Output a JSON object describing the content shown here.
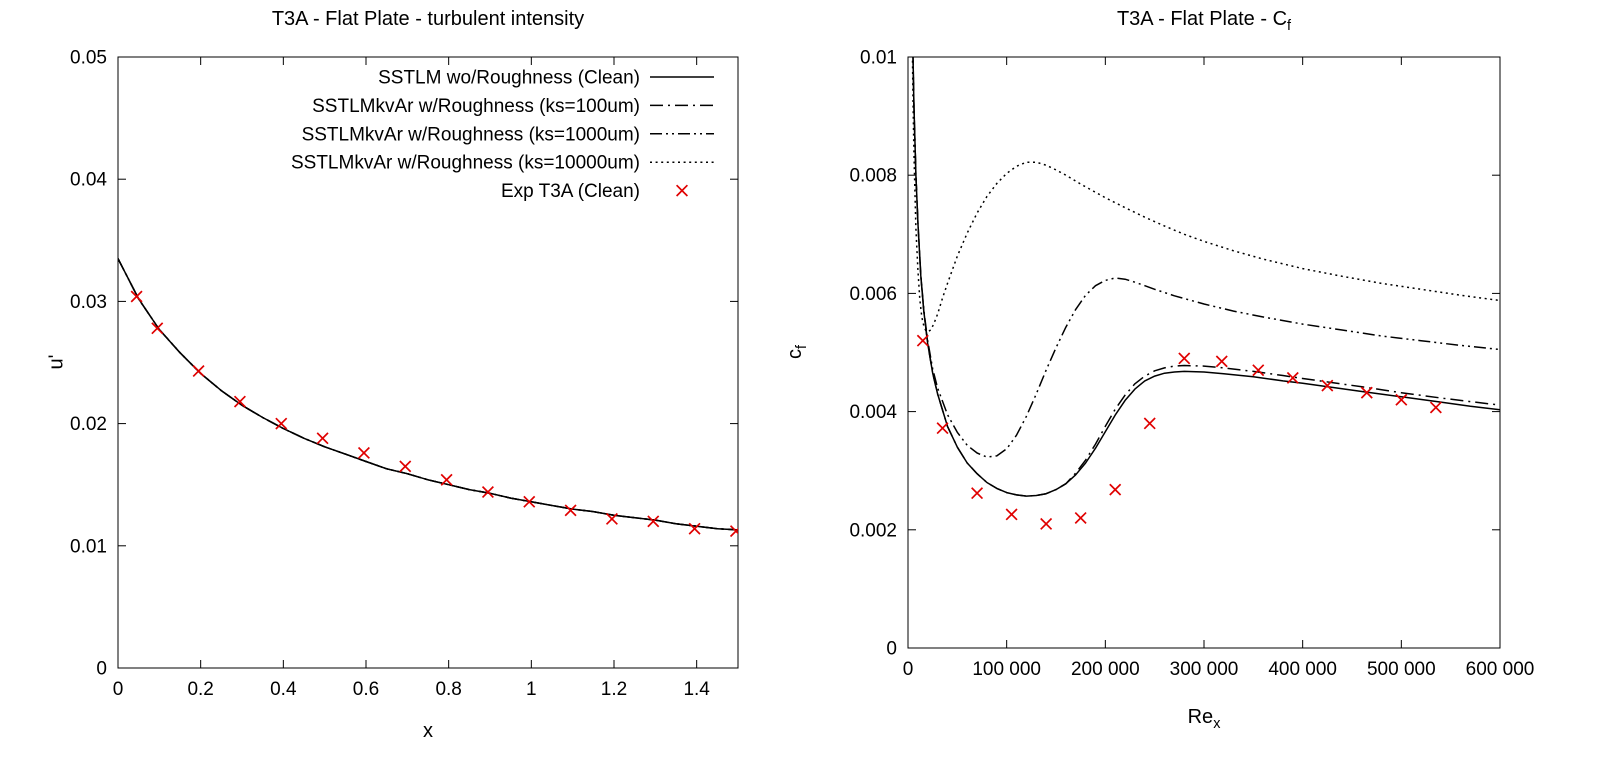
{
  "page": {
    "background": "#ffffff"
  },
  "styles": {
    "axis_color": "#000000",
    "model_line_color": "#000000",
    "experiment_color": "#e00000"
  },
  "chart_data": [
    {
      "id": "turbulent-intensity",
      "type": "line",
      "title": "T3A - Flat Plate - turbulent intensity",
      "xlabel": "x",
      "ylabel": "u'",
      "xlim": [
        0,
        1.5
      ],
      "ylim": [
        0,
        0.05
      ],
      "grid": false,
      "x_ticks": {
        "values": [
          0,
          0.2,
          0.4,
          0.6,
          0.8,
          1,
          1.2,
          1.4
        ],
        "labels": [
          "0",
          "0.2",
          "0.4",
          "0.6",
          "0.8",
          "1",
          "1.2",
          "1.4"
        ]
      },
      "y_ticks": {
        "values": [
          0,
          0.01,
          0.02,
          0.03,
          0.04,
          0.05
        ],
        "labels": [
          "0",
          "0.01",
          "0.02",
          "0.03",
          "0.04",
          "0.05"
        ]
      },
      "legend": {
        "visible": true,
        "position": "top-center-inside"
      },
      "series": [
        {
          "name": "SSTLM wo/Roughness (Clean)",
          "style": "solid",
          "color": "#000000",
          "x": [
            0,
            0.05,
            0.1,
            0.15,
            0.2,
            0.25,
            0.3,
            0.35,
            0.4,
            0.45,
            0.5,
            0.55,
            0.6,
            0.65,
            0.7,
            0.75,
            0.8,
            0.85,
            0.9,
            0.95,
            1,
            1.05,
            1.1,
            1.15,
            1.2,
            1.25,
            1.3,
            1.35,
            1.4,
            1.45,
            1.5
          ],
          "y": [
            0.0335,
            0.0302,
            0.0277,
            0.0258,
            0.0241,
            0.0227,
            0.0215,
            0.0205,
            0.0196,
            0.0188,
            0.0181,
            0.0175,
            0.0169,
            0.0163,
            0.0159,
            0.0154,
            0.015,
            0.0146,
            0.0143,
            0.0139,
            0.0136,
            0.0133,
            0.013,
            0.0128,
            0.0125,
            0.0123,
            0.0121,
            0.0118,
            0.0116,
            0.0114,
            0.0113
          ]
        },
        {
          "name": "SSTLMkvAr w/Roughness (ks=100um)",
          "style": "dash-dot",
          "color": "#000000",
          "x": [
            0,
            0.05,
            0.1,
            0.15,
            0.2,
            0.25,
            0.3,
            0.35,
            0.4,
            0.45,
            0.5,
            0.55,
            0.6,
            0.65,
            0.7,
            0.75,
            0.8,
            0.85,
            0.9,
            0.95,
            1,
            1.05,
            1.1,
            1.15,
            1.2,
            1.25,
            1.3,
            1.35,
            1.4,
            1.45,
            1.5
          ],
          "y": [
            0.0335,
            0.0302,
            0.0277,
            0.0258,
            0.0241,
            0.0227,
            0.0215,
            0.0205,
            0.0196,
            0.0188,
            0.0181,
            0.0175,
            0.0169,
            0.0163,
            0.0159,
            0.0154,
            0.015,
            0.0146,
            0.0143,
            0.0139,
            0.0136,
            0.0133,
            0.013,
            0.0128,
            0.0125,
            0.0123,
            0.0121,
            0.0118,
            0.0116,
            0.0114,
            0.0113
          ]
        },
        {
          "name": "SSTLMkvAr w/Roughness (ks=1000um)",
          "style": "dash-dot-dot",
          "color": "#000000",
          "x": [
            0,
            0.05,
            0.1,
            0.15,
            0.2,
            0.25,
            0.3,
            0.35,
            0.4,
            0.45,
            0.5,
            0.55,
            0.6,
            0.65,
            0.7,
            0.75,
            0.8,
            0.85,
            0.9,
            0.95,
            1,
            1.05,
            1.1,
            1.15,
            1.2,
            1.25,
            1.3,
            1.35,
            1.4,
            1.45,
            1.5
          ],
          "y": [
            0.0335,
            0.0302,
            0.0277,
            0.0258,
            0.0241,
            0.0227,
            0.0215,
            0.0205,
            0.0196,
            0.0188,
            0.0181,
            0.0175,
            0.0169,
            0.0163,
            0.0159,
            0.0154,
            0.015,
            0.0146,
            0.0143,
            0.0139,
            0.0136,
            0.0133,
            0.013,
            0.0128,
            0.0125,
            0.0123,
            0.0121,
            0.0118,
            0.0116,
            0.0114,
            0.0113
          ]
        },
        {
          "name": "SSTLMkvAr w/Roughness (ks=10000um)",
          "style": "dotted",
          "color": "#000000",
          "x": [
            0,
            0.05,
            0.1,
            0.15,
            0.2,
            0.25,
            0.3,
            0.35,
            0.4,
            0.45,
            0.5,
            0.55,
            0.6,
            0.65,
            0.7,
            0.75,
            0.8,
            0.85,
            0.9,
            0.95,
            1,
            1.05,
            1.1,
            1.15,
            1.2,
            1.25,
            1.3,
            1.35,
            1.4,
            1.45,
            1.5
          ],
          "y": [
            0.0335,
            0.0302,
            0.0277,
            0.0258,
            0.0241,
            0.0227,
            0.0215,
            0.0205,
            0.0196,
            0.0188,
            0.0181,
            0.0175,
            0.0169,
            0.0163,
            0.0159,
            0.0154,
            0.015,
            0.0146,
            0.0143,
            0.0139,
            0.0136,
            0.0133,
            0.013,
            0.0128,
            0.0125,
            0.0123,
            0.0121,
            0.0118,
            0.0116,
            0.0114,
            0.0113
          ]
        },
        {
          "name": "Exp T3A (Clean)",
          "style": "scatter-x",
          "color": "#e00000",
          "x": [
            0.045,
            0.095,
            0.195,
            0.295,
            0.395,
            0.495,
            0.595,
            0.695,
            0.795,
            0.895,
            0.995,
            1.095,
            1.195,
            1.295,
            1.395,
            1.495
          ],
          "y": [
            0.0304,
            0.0278,
            0.0243,
            0.0218,
            0.02,
            0.0188,
            0.0176,
            0.0165,
            0.0154,
            0.0144,
            0.0136,
            0.0129,
            0.0122,
            0.012,
            0.0114,
            0.0112
          ]
        }
      ]
    },
    {
      "id": "skin-friction",
      "type": "line",
      "title": "T3A - Flat Plate - Cf",
      "title_main": "T3A - Flat Plate - C",
      "title_sub": "f",
      "xlabel": "Re_x",
      "xlabel_main": "Re",
      "xlabel_sub": "x",
      "ylabel": "c_f",
      "ylabel_main": "c",
      "ylabel_sub": "f",
      "xlim": [
        0,
        600000
      ],
      "ylim": [
        0,
        0.01
      ],
      "grid": false,
      "x_ticks": {
        "values": [
          0,
          100000,
          200000,
          300000,
          400000,
          500000,
          600000
        ],
        "labels": [
          "0",
          "100 000",
          "200 000",
          "300 000",
          "400 000",
          "500 000",
          "600 000"
        ]
      },
      "y_ticks": {
        "values": [
          0,
          0.002,
          0.004,
          0.006,
          0.008,
          0.01
        ],
        "labels": [
          "0",
          "0.002",
          "0.004",
          "0.006",
          "0.008",
          "0.01"
        ]
      },
      "legend": {
        "visible": false
      },
      "series": [
        {
          "name": "SSTLM wo/Roughness (Clean)",
          "style": "solid",
          "color": "#000000",
          "x": [
            2000,
            3000,
            4000,
            5000,
            6000,
            8000,
            10000,
            13000,
            16000,
            20000,
            25000,
            30000,
            40000,
            50000,
            60000,
            70000,
            80000,
            90000,
            100000,
            110000,
            120000,
            130000,
            140000,
            150000,
            160000,
            170000,
            180000,
            190000,
            200000,
            210000,
            220000,
            230000,
            240000,
            250000,
            260000,
            270000,
            280000,
            300000,
            320000,
            350000,
            380000,
            400000,
            430000,
            460000,
            500000,
            540000,
            570000,
            600000
          ],
          "y": [
            0.016,
            0.0131,
            0.0113,
            0.0101,
            0.0092,
            0.008,
            0.0072,
            0.0063,
            0.0057,
            0.00515,
            0.00465,
            0.0043,
            0.00375,
            0.0034,
            0.00313,
            0.00295,
            0.0028,
            0.0027,
            0.00263,
            0.00259,
            0.00257,
            0.00258,
            0.00261,
            0.00268,
            0.00278,
            0.00293,
            0.00313,
            0.00338,
            0.00366,
            0.00394,
            0.00419,
            0.00438,
            0.00452,
            0.0046,
            0.00465,
            0.00467,
            0.00468,
            0.00467,
            0.00464,
            0.00459,
            0.00452,
            0.00448,
            0.00441,
            0.00434,
            0.00425,
            0.00416,
            0.00409,
            0.00403
          ]
        },
        {
          "name": "SSTLMkvAr w/Roughness (ks=100um)",
          "style": "dash-dot",
          "color": "#000000",
          "x": [
            2000,
            3000,
            4000,
            5000,
            6000,
            8000,
            10000,
            13000,
            16000,
            20000,
            25000,
            30000,
            40000,
            50000,
            60000,
            70000,
            80000,
            90000,
            100000,
            110000,
            120000,
            130000,
            140000,
            150000,
            160000,
            170000,
            180000,
            190000,
            200000,
            210000,
            220000,
            230000,
            240000,
            250000,
            260000,
            270000,
            280000,
            300000,
            320000,
            350000,
            380000,
            400000,
            430000,
            460000,
            500000,
            540000,
            570000,
            600000
          ],
          "y": [
            0.016,
            0.0131,
            0.0113,
            0.0101,
            0.0092,
            0.008,
            0.0072,
            0.0063,
            0.0057,
            0.00515,
            0.00465,
            0.0043,
            0.00375,
            0.0034,
            0.00313,
            0.00295,
            0.0028,
            0.0027,
            0.00263,
            0.00259,
            0.00257,
            0.00258,
            0.00261,
            0.00268,
            0.00278,
            0.00296,
            0.00318,
            0.00345,
            0.00375,
            0.00404,
            0.00428,
            0.00447,
            0.0046,
            0.00469,
            0.00474,
            0.00477,
            0.00478,
            0.00477,
            0.00474,
            0.00468,
            0.00461,
            0.00456,
            0.00449,
            0.00442,
            0.00432,
            0.00423,
            0.00417,
            0.00411
          ]
        },
        {
          "name": "SSTLMkvAr w/Roughness (ks=1000um)",
          "style": "dash-dot-dot",
          "color": "#000000",
          "x": [
            2000,
            3000,
            4000,
            5000,
            6000,
            8000,
            10000,
            13000,
            16000,
            20000,
            25000,
            30000,
            40000,
            50000,
            60000,
            70000,
            80000,
            90000,
            100000,
            110000,
            120000,
            130000,
            140000,
            150000,
            160000,
            170000,
            180000,
            190000,
            200000,
            210000,
            220000,
            230000,
            240000,
            250000,
            270000,
            300000,
            330000,
            360000,
            400000,
            440000,
            480000,
            520000,
            560000,
            600000
          ],
          "y": [
            0.016,
            0.0131,
            0.0113,
            0.0101,
            0.0092,
            0.008,
            0.0072,
            0.00632,
            0.00572,
            0.0052,
            0.00472,
            0.0044,
            0.00395,
            0.00365,
            0.00343,
            0.0033,
            0.00323,
            0.00325,
            0.00337,
            0.0036,
            0.00392,
            0.0043,
            0.0047,
            0.00508,
            0.00543,
            0.00573,
            0.00597,
            0.00613,
            0.00622,
            0.00626,
            0.00624,
            0.00619,
            0.00613,
            0.00607,
            0.00596,
            0.00582,
            0.0057,
            0.0056,
            0.00548,
            0.00538,
            0.00528,
            0.0052,
            0.00512,
            0.00505
          ]
        },
        {
          "name": "SSTLMkvAr w/Roughness (ks=10000um)",
          "style": "dotted",
          "color": "#000000",
          "x": [
            2000,
            3000,
            4000,
            5000,
            6000,
            8000,
            10000,
            12000,
            14000,
            16000,
            18000,
            20000,
            23000,
            26000,
            30000,
            35000,
            40000,
            50000,
            60000,
            70000,
            80000,
            90000,
            100000,
            110000,
            120000,
            130000,
            140000,
            150000,
            160000,
            175000,
            190000,
            200000,
            220000,
            240000,
            260000,
            280000,
            300000,
            330000,
            360000,
            400000,
            440000,
            480000,
            520000,
            560000,
            600000
          ],
          "y": [
            0.016,
            0.0128,
            0.0108,
            0.0094,
            0.0084,
            0.0071,
            0.0064,
            0.0059,
            0.0056,
            0.00545,
            0.00537,
            0.00535,
            0.00538,
            0.00548,
            0.00565,
            0.00592,
            0.00617,
            0.00663,
            0.00702,
            0.00736,
            0.00764,
            0.00786,
            0.00803,
            0.00815,
            0.00822,
            0.00822,
            0.00817,
            0.00809,
            0.008,
            0.00785,
            0.00771,
            0.00762,
            0.00745,
            0.00729,
            0.00714,
            0.007,
            0.00688,
            0.00672,
            0.00658,
            0.00642,
            0.00629,
            0.00617,
            0.00607,
            0.00597,
            0.00588
          ]
        },
        {
          "name": "Exp T3A (Clean)",
          "style": "scatter-x",
          "color": "#e00000",
          "x": [
            15000,
            35000,
            70000,
            105000,
            140000,
            175000,
            210000,
            245000,
            280000,
            318000,
            355000,
            390000,
            425000,
            465000,
            500000,
            535000
          ],
          "y": [
            0.0052,
            0.00372,
            0.00262,
            0.00226,
            0.0021,
            0.0022,
            0.00268,
            0.0038,
            0.0049,
            0.00485,
            0.0047,
            0.00457,
            0.00444,
            0.00432,
            0.0042,
            0.00407
          ]
        }
      ]
    }
  ]
}
